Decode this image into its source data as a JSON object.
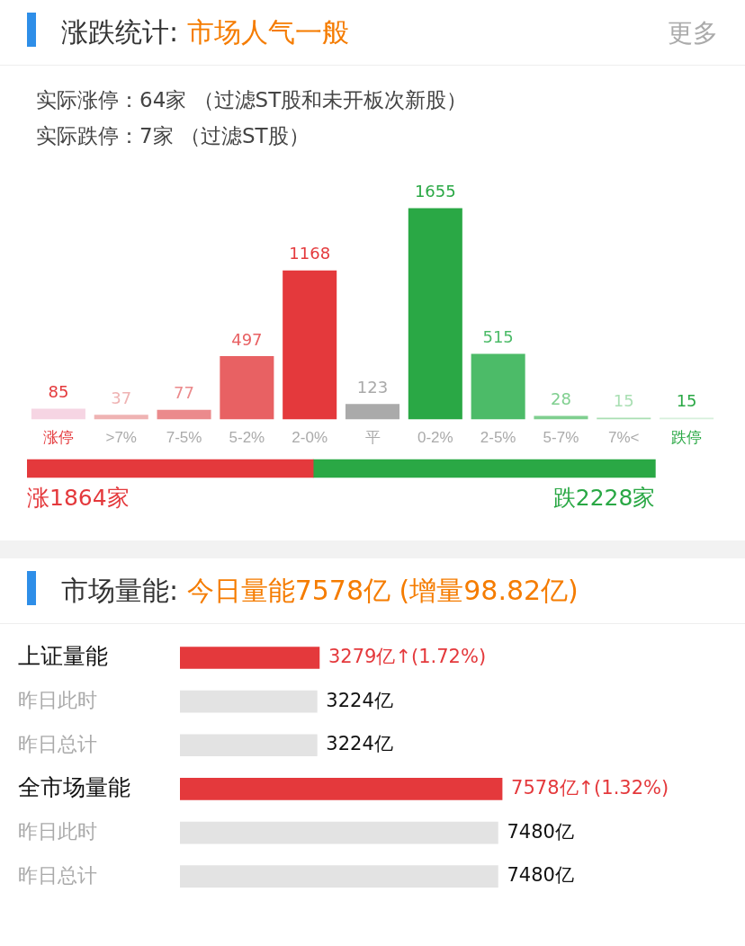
{
  "chart_data": [
    {
      "type": "bar",
      "title": "涨跌统计: 市场人气一般",
      "annotations": [
        "更多",
        "实际涨停：64家 （过滤ST股和未开板次新股）",
        "实际跌停：7家 （过滤ST股）"
      ],
      "categories": [
        "涨停",
        ">7%",
        "7-5%",
        "5-2%",
        "2-0%",
        "平",
        "0-2%",
        "2-5%",
        "5-7%",
        "7%<",
        "跌停"
      ],
      "values": [
        85,
        37,
        77,
        497,
        1168,
        123,
        1655,
        515,
        28,
        15,
        15
      ],
      "colors": [
        "#f6d5e3",
        "#efb3b3",
        "#eb8a8c",
        "#e86163",
        "#e4393c",
        "#aaaaaa",
        "#2aa845",
        "#4cbb68",
        "#7fcf8f",
        "#a9dfb3",
        "#d6efdb"
      ],
      "data_labels": true
    },
    {
      "type": "bar",
      "orientation": "horizontal",
      "stacked": true,
      "categories": [
        null
      ],
      "series": [
        {
          "color": "#e4393c",
          "values": [
            1864
          ],
          "value_labels": [
            "涨1864家"
          ]
        },
        {
          "color": "#2aa845",
          "values": [
            2228
          ],
          "value_labels": [
            "跌2228家"
          ]
        }
      ]
    },
    {
      "type": "bar",
      "orientation": "horizontal",
      "title": "市场量能: 今日量能7578亿 (增量98.82亿)",
      "categories": [
        "上证量能",
        "昨日此时",
        "昨日总计",
        "全市场量能",
        "昨日此时",
        "昨日总计"
      ],
      "values": [
        3279,
        3224,
        3224,
        7578,
        7480,
        7480
      ],
      "colors": [
        "#e4393c",
        "#e3e3e3",
        "#e3e3e3",
        "#e4393c",
        "#e3e3e3",
        "#e3e3e3"
      ],
      "value_labels": [
        "3279亿↑(1.72%)",
        "3224亿",
        "3224亿",
        "7578亿↑(1.32%)",
        "7480亿",
        "7480亿"
      ]
    }
  ]
}
